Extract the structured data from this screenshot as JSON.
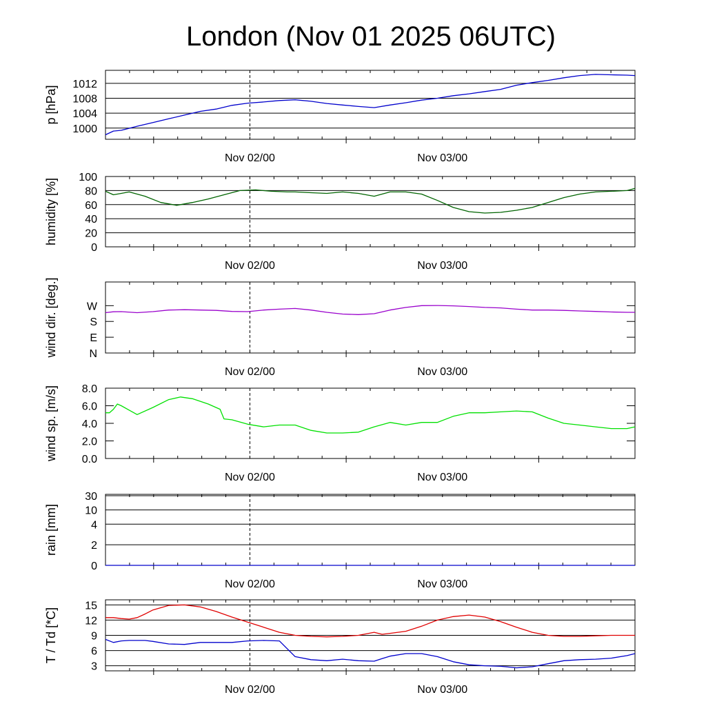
{
  "title": "London (Nov 01 2025 06UTC)",
  "x_tick_labels": [
    "Nov 02/00",
    "Nov 03/00"
  ],
  "colors": {
    "pressure": "#0000cc",
    "humidity": "#006400",
    "wind_dir": "#9900cc",
    "wind_speed": "#00e000",
    "rain": "#0000cc",
    "temperature": "#e00000",
    "dewpoint": "#0000cc"
  },
  "chart_data": [
    {
      "type": "line",
      "ylabel": "p [hPa]",
      "ylim": [
        997,
        1015.5
      ],
      "yticks": [
        "1000",
        "1004",
        "1008",
        "1012"
      ],
      "x_hours": [
        0,
        1,
        2,
        4,
        6,
        8,
        10,
        12,
        14,
        16,
        18,
        20,
        22,
        24,
        26,
        28,
        30,
        32,
        34,
        36,
        38,
        40,
        42,
        44,
        46,
        48,
        50,
        52,
        54,
        56,
        58,
        60,
        62,
        64,
        66,
        67
      ],
      "series": [
        {
          "name": "",
          "values": [
            998.2,
            999.2,
            999.4,
            1000.5,
            1001.5,
            1002.5,
            1003.5,
            1004.5,
            1005.1,
            1006.1,
            1006.7,
            1007.0,
            1007.4,
            1007.6,
            1007.2,
            1006.6,
            1006.2,
            1005.8,
            1005.5,
            1006.2,
            1006.8,
            1007.5,
            1008.0,
            1008.7,
            1009.2,
            1009.8,
            1010.4,
            1011.5,
            1012.2,
            1012.8,
            1013.5,
            1014.1,
            1014.4,
            1014.3,
            1014.2,
            1014.1
          ]
        }
      ]
    },
    {
      "type": "line",
      "ylabel": "humidity [%]",
      "ylim": [
        0,
        100
      ],
      "yticks": [
        "0",
        "20",
        "40",
        "60",
        "80",
        "100"
      ],
      "x_hours": [
        0,
        1,
        2,
        3,
        5,
        7,
        9,
        11,
        13,
        15,
        17,
        19,
        21,
        23,
        24,
        26,
        28,
        30,
        32,
        34,
        36,
        38,
        40,
        42,
        44,
        46,
        48,
        50,
        52,
        54,
        56,
        58,
        60,
        62,
        64,
        66,
        67
      ],
      "series": [
        {
          "name": "",
          "values": [
            79,
            74,
            76,
            78,
            72,
            63,
            59,
            63,
            68,
            74,
            80,
            81,
            79,
            78,
            78,
            77,
            76,
            78,
            76,
            72,
            78,
            78,
            75,
            66,
            56,
            50,
            48,
            49,
            52,
            56,
            63,
            70,
            75,
            78,
            79,
            80,
            83
          ]
        }
      ]
    },
    {
      "type": "line",
      "ylabel": "wind dir. [deg.]",
      "ylim": [
        0,
        405
      ],
      "yticks": [
        "N",
        "E",
        "S",
        "W"
      ],
      "x_hours": [
        0,
        1,
        2,
        4,
        6,
        8,
        10,
        12,
        14,
        16,
        18,
        20,
        22,
        24,
        26,
        28,
        30,
        32,
        34,
        36,
        38,
        40,
        42,
        44,
        46,
        48,
        50,
        52,
        54,
        56,
        58,
        60,
        62,
        64,
        66,
        67
      ],
      "series": [
        {
          "name": "",
          "values": [
            230,
            235,
            236,
            230,
            236,
            245,
            247,
            245,
            243,
            237,
            236,
            245,
            250,
            254,
            245,
            232,
            222,
            219,
            224,
            245,
            260,
            270,
            271,
            269,
            265,
            260,
            257,
            250,
            245,
            245,
            243,
            240,
            237,
            234,
            232,
            232
          ]
        }
      ]
    },
    {
      "type": "line",
      "ylabel": "wind sp. [m/s]",
      "ylim": [
        0,
        8
      ],
      "yticks": [
        "0.0",
        "2.0",
        "4.0",
        "6.0",
        "8.0"
      ],
      "x_hours": [
        0,
        0.5,
        1,
        1.5,
        2,
        3,
        4,
        6,
        8,
        9.5,
        11,
        13,
        14.5,
        15,
        16,
        18,
        20,
        22,
        24,
        26,
        28,
        30,
        32,
        34,
        36,
        38,
        40,
        42,
        44,
        46,
        48,
        50,
        52,
        54,
        56,
        58,
        60,
        62,
        64,
        66,
        67
      ],
      "series": [
        {
          "name": "",
          "values": [
            5.2,
            5.2,
            5.6,
            6.2,
            6.0,
            5.5,
            5.0,
            5.8,
            6.7,
            7.0,
            6.8,
            6.2,
            5.6,
            4.5,
            4.4,
            3.9,
            3.6,
            3.8,
            3.8,
            3.2,
            2.9,
            2.9,
            3.0,
            3.6,
            4.1,
            3.8,
            4.1,
            4.1,
            4.8,
            5.2,
            5.2,
            5.3,
            5.4,
            5.3,
            4.6,
            4.0,
            3.8,
            3.6,
            3.4,
            3.4,
            3.6
          ]
        }
      ]
    },
    {
      "type": "line",
      "ylabel": "rain [mm]",
      "ylim": [
        0,
        30
      ],
      "yticks": [
        "0",
        "2",
        "4",
        "10",
        "30"
      ],
      "x_hours": [
        0,
        10,
        20,
        30,
        40,
        50,
        60,
        67
      ],
      "series": [
        {
          "name": "",
          "values": [
            0,
            0,
            0,
            0,
            0,
            0,
            0,
            0
          ]
        }
      ]
    },
    {
      "type": "line",
      "ylabel": "T / Td [*C]",
      "ylim": [
        2,
        16
      ],
      "yticks": [
        "3",
        "6",
        "9",
        "12",
        "15"
      ],
      "x_hours": [
        0,
        1,
        2,
        3,
        4,
        5,
        6,
        8,
        10,
        12,
        14,
        16,
        18,
        20,
        22,
        24,
        26,
        28,
        30,
        32,
        34,
        35,
        36,
        38,
        40,
        42,
        44,
        46,
        48,
        50,
        52,
        54,
        56,
        58,
        60,
        62,
        64,
        66,
        67
      ],
      "series": [
        {
          "name": "",
          "values": [
            12.5,
            12.5,
            12.3,
            12.2,
            12.5,
            13.2,
            14.0,
            14.9,
            15.0,
            14.6,
            13.7,
            12.6,
            11.6,
            10.6,
            9.6,
            9.0,
            8.8,
            8.7,
            8.8,
            9.0,
            9.6,
            9.2,
            9.4,
            9.8,
            10.8,
            12.0,
            12.7,
            13.0,
            12.6,
            11.7,
            10.6,
            9.6,
            9.0,
            8.8,
            8.8,
            8.9,
            9.0,
            9.0,
            9.0
          ]
        },
        {
          "name": "",
          "values": [
            8.2,
            7.6,
            7.9,
            8.0,
            8.0,
            8.0,
            7.8,
            7.3,
            7.2,
            7.6,
            7.6,
            7.6,
            7.9,
            8.0,
            7.9,
            4.8,
            4.2,
            4.0,
            4.3,
            4.0,
            3.9,
            4.4,
            4.9,
            5.4,
            5.4,
            4.8,
            3.8,
            3.2,
            3.0,
            2.9,
            2.6,
            2.8,
            3.4,
            4.0,
            4.2,
            4.3,
            4.5,
            5.0,
            5.4
          ]
        }
      ]
    }
  ]
}
